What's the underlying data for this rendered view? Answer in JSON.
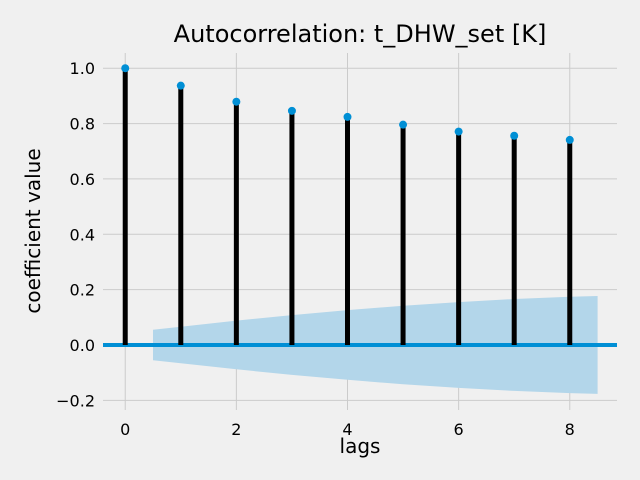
{
  "chart_data": {
    "type": "stem",
    "title": "Autocorrelation: t_DHW_set [K]",
    "xlabel": "lags",
    "ylabel": "coefficient value",
    "x": [
      0,
      1,
      2,
      3,
      4,
      5,
      6,
      7,
      8
    ],
    "values": [
      1.0,
      0.937,
      0.879,
      0.846,
      0.824,
      0.796,
      0.771,
      0.756,
      0.741
    ],
    "confidence_band": {
      "x": [
        0.5,
        1,
        2,
        3,
        4,
        5,
        6,
        7,
        8,
        8.5
      ],
      "upper": [
        0.055,
        0.066,
        0.088,
        0.108,
        0.126,
        0.142,
        0.155,
        0.166,
        0.174,
        0.177
      ],
      "lower": [
        -0.055,
        -0.066,
        -0.088,
        -0.108,
        -0.126,
        -0.142,
        -0.155,
        -0.166,
        -0.174,
        -0.177
      ]
    },
    "xlim": [
      -0.4,
      8.85
    ],
    "ylim": [
      -0.235,
      1.055
    ],
    "xticks": [
      0,
      2,
      4,
      6,
      8
    ],
    "xtick_labels": [
      "0",
      "2",
      "4",
      "6",
      "8"
    ],
    "yticks": [
      -0.2,
      0.0,
      0.2,
      0.4,
      0.6,
      0.8,
      1.0
    ],
    "ytick_labels": [
      "−0.2",
      "0.0",
      "0.2",
      "0.4",
      "0.6",
      "0.8",
      "1.0"
    ],
    "grid": true,
    "colors": {
      "background": "#f0f0f0",
      "grid": "#cbcbcb",
      "stem": "#000000",
      "marker": "#008fd5",
      "zero_line": "#008fd5",
      "band": "#b3d6ea"
    }
  }
}
